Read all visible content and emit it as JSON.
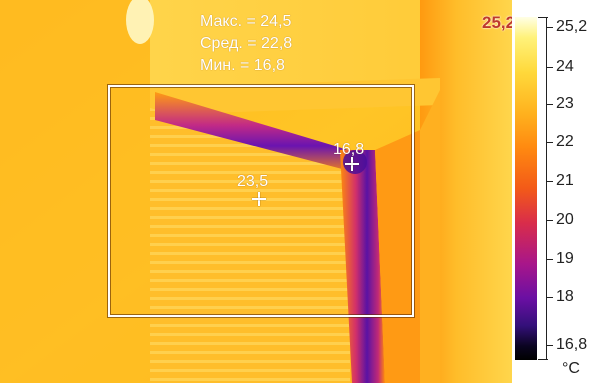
{
  "stats": {
    "max": "Макс. = 24,5",
    "avg": "Сред. = 22,8",
    "min": "Мин. = 16,8"
  },
  "spots": {
    "spot1": "23,5",
    "spot2": "16,8"
  },
  "scale": {
    "top_marker": "25,2",
    "ticks": [
      "25,2",
      "24",
      "23",
      "22",
      "21",
      "20",
      "19",
      "18",
      "16,8"
    ],
    "unit": "°C"
  },
  "colors": {
    "warm": "#ffc21a",
    "mid": "#ff8c0a",
    "cold": "#7a16a8",
    "max_label": "#c0392b"
  }
}
